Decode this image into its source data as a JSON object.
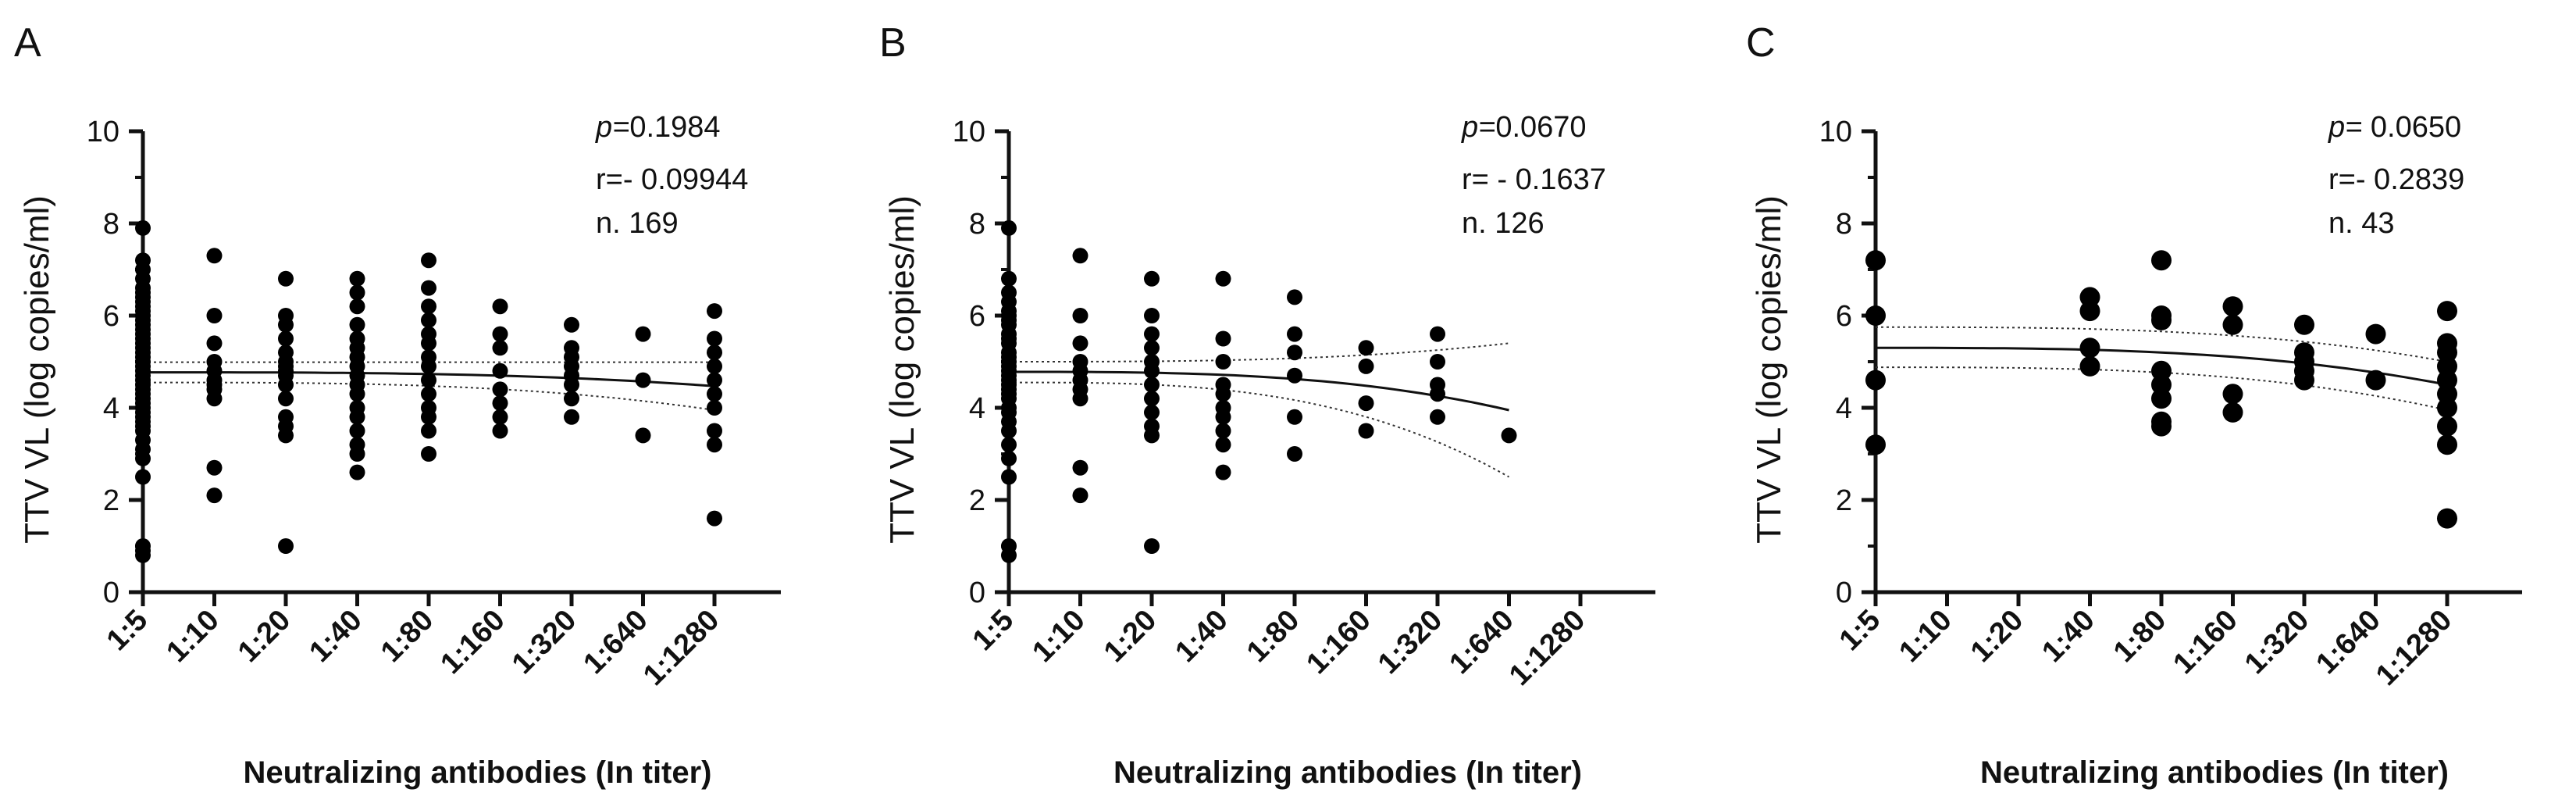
{
  "chart_data": [
    {
      "type": "scatter",
      "panel": "A",
      "ylabel": "TTV VL (log copies/ml)",
      "xlabel": "Neutralizing antibodies (In titer)",
      "categories": [
        "1:5",
        "1:10",
        "1:20",
        "1:40",
        "1:80",
        "1:160",
        "1:320",
        "1:640",
        "1:1280"
      ],
      "yticks": [
        0,
        2,
        4,
        6,
        8,
        10
      ],
      "ylim": [
        0,
        10
      ],
      "stats": {
        "p": "0.1984",
        "r": "- 0.09944",
        "n": "169"
      },
      "stats_labels": {
        "p": "p=",
        "r": "r=",
        "n": "n."
      },
      "points": [
        [
          0,
          0.8
        ],
        [
          0,
          0.9
        ],
        [
          0,
          1.0
        ],
        [
          0,
          2.5
        ],
        [
          0,
          2.9
        ],
        [
          0,
          3.1
        ],
        [
          0,
          3.3
        ],
        [
          0,
          3.5
        ],
        [
          0,
          3.6
        ],
        [
          0,
          3.7
        ],
        [
          0,
          3.8
        ],
        [
          0,
          3.9
        ],
        [
          0,
          4.0
        ],
        [
          0,
          4.1
        ],
        [
          0,
          4.2
        ],
        [
          0,
          4.3
        ],
        [
          0,
          4.4
        ],
        [
          0,
          4.5
        ],
        [
          0,
          4.6
        ],
        [
          0,
          4.7
        ],
        [
          0,
          4.8
        ],
        [
          0,
          4.9
        ],
        [
          0,
          5.0
        ],
        [
          0,
          5.1
        ],
        [
          0,
          5.2
        ],
        [
          0,
          5.3
        ],
        [
          0,
          5.4
        ],
        [
          0,
          5.5
        ],
        [
          0,
          5.6
        ],
        [
          0,
          5.7
        ],
        [
          0,
          5.8
        ],
        [
          0,
          5.9
        ],
        [
          0,
          6.0
        ],
        [
          0,
          6.1
        ],
        [
          0,
          6.2
        ],
        [
          0,
          6.3
        ],
        [
          0,
          6.4
        ],
        [
          0,
          6.5
        ],
        [
          0,
          6.6
        ],
        [
          0,
          6.8
        ],
        [
          0,
          7.0
        ],
        [
          0,
          7.2
        ],
        [
          0,
          7.9
        ],
        [
          1,
          2.1
        ],
        [
          1,
          2.7
        ],
        [
          1,
          4.2
        ],
        [
          1,
          4.4
        ],
        [
          1,
          4.5
        ],
        [
          1,
          4.6
        ],
        [
          1,
          4.8
        ],
        [
          1,
          5.0
        ],
        [
          1,
          5.4
        ],
        [
          1,
          6.0
        ],
        [
          1,
          7.3
        ],
        [
          2,
          1.0
        ],
        [
          2,
          3.4
        ],
        [
          2,
          3.6
        ],
        [
          2,
          3.8
        ],
        [
          2,
          4.2
        ],
        [
          2,
          4.5
        ],
        [
          2,
          4.7
        ],
        [
          2,
          4.8
        ],
        [
          2,
          4.9
        ],
        [
          2,
          5.0
        ],
        [
          2,
          5.2
        ],
        [
          2,
          5.5
        ],
        [
          2,
          5.8
        ],
        [
          2,
          6.0
        ],
        [
          2,
          6.8
        ],
        [
          3,
          2.6
        ],
        [
          3,
          3.0
        ],
        [
          3,
          3.2
        ],
        [
          3,
          3.5
        ],
        [
          3,
          3.8
        ],
        [
          3,
          4.0
        ],
        [
          3,
          4.3
        ],
        [
          3,
          4.5
        ],
        [
          3,
          4.7
        ],
        [
          3,
          4.9
        ],
        [
          3,
          5.1
        ],
        [
          3,
          5.3
        ],
        [
          3,
          5.5
        ],
        [
          3,
          5.8
        ],
        [
          3,
          6.2
        ],
        [
          3,
          6.5
        ],
        [
          3,
          6.8
        ],
        [
          4,
          3.0
        ],
        [
          4,
          3.5
        ],
        [
          4,
          3.8
        ],
        [
          4,
          4.0
        ],
        [
          4,
          4.3
        ],
        [
          4,
          4.6
        ],
        [
          4,
          4.9
        ],
        [
          4,
          5.1
        ],
        [
          4,
          5.4
        ],
        [
          4,
          5.6
        ],
        [
          4,
          5.9
        ],
        [
          4,
          6.2
        ],
        [
          4,
          6.6
        ],
        [
          4,
          7.2
        ],
        [
          5,
          3.5
        ],
        [
          5,
          3.8
        ],
        [
          5,
          4.1
        ],
        [
          5,
          4.4
        ],
        [
          5,
          4.8
        ],
        [
          5,
          5.3
        ],
        [
          5,
          5.6
        ],
        [
          5,
          6.2
        ],
        [
          6,
          3.8
        ],
        [
          6,
          4.2
        ],
        [
          6,
          4.5
        ],
        [
          6,
          4.7
        ],
        [
          6,
          4.9
        ],
        [
          6,
          5.1
        ],
        [
          6,
          5.3
        ],
        [
          6,
          5.8
        ],
        [
          7,
          3.4
        ],
        [
          7,
          4.6
        ],
        [
          7,
          5.6
        ],
        [
          8,
          1.6
        ],
        [
          8,
          3.2
        ],
        [
          8,
          3.5
        ],
        [
          8,
          4.0
        ],
        [
          8,
          4.3
        ],
        [
          8,
          4.6
        ],
        [
          8,
          4.9
        ],
        [
          8,
          5.2
        ],
        [
          8,
          5.5
        ],
        [
          8,
          6.1
        ]
      ],
      "fit": {
        "y0": 4.77,
        "y1": 4.47,
        "band_lo0": 4.55,
        "band_lo1": 3.95,
        "band_hi0": 4.99,
        "band_hi1": 4.99
      }
    },
    {
      "type": "scatter",
      "panel": "B",
      "ylabel": "TTV VL (log copies/ml)",
      "xlabel": "Neutralizing antibodies (In titer)",
      "categories": [
        "1:5",
        "1:10",
        "1:20",
        "1:40",
        "1:80",
        "1:160",
        "1:320",
        "1:640",
        "1:1280"
      ],
      "yticks": [
        0,
        2,
        4,
        6,
        8,
        10
      ],
      "ylim": [
        0,
        10
      ],
      "stats": {
        "p": "0.0670",
        "r": " - 0.1637",
        "n": "126"
      },
      "stats_labels": {
        "p": "p=",
        "r": "r=",
        "n": "n."
      },
      "points": [
        [
          0,
          0.8
        ],
        [
          0,
          1.0
        ],
        [
          0,
          2.5
        ],
        [
          0,
          2.9
        ],
        [
          0,
          3.2
        ],
        [
          0,
          3.5
        ],
        [
          0,
          3.7
        ],
        [
          0,
          3.9
        ],
        [
          0,
          4.0
        ],
        [
          0,
          4.2
        ],
        [
          0,
          4.3
        ],
        [
          0,
          4.4
        ],
        [
          0,
          4.5
        ],
        [
          0,
          4.6
        ],
        [
          0,
          4.7
        ],
        [
          0,
          4.8
        ],
        [
          0,
          4.9
        ],
        [
          0,
          5.0
        ],
        [
          0,
          5.1
        ],
        [
          0,
          5.2
        ],
        [
          0,
          5.4
        ],
        [
          0,
          5.5
        ],
        [
          0,
          5.6
        ],
        [
          0,
          5.8
        ],
        [
          0,
          5.9
        ],
        [
          0,
          6.0
        ],
        [
          0,
          6.1
        ],
        [
          0,
          6.3
        ],
        [
          0,
          6.5
        ],
        [
          0,
          6.8
        ],
        [
          0,
          7.9
        ],
        [
          1,
          2.1
        ],
        [
          1,
          2.7
        ],
        [
          1,
          4.2
        ],
        [
          1,
          4.4
        ],
        [
          1,
          4.6
        ],
        [
          1,
          4.8
        ],
        [
          1,
          5.0
        ],
        [
          1,
          5.4
        ],
        [
          1,
          6.0
        ],
        [
          1,
          7.3
        ],
        [
          2,
          1.0
        ],
        [
          2,
          3.4
        ],
        [
          2,
          3.6
        ],
        [
          2,
          3.9
        ],
        [
          2,
          4.2
        ],
        [
          2,
          4.5
        ],
        [
          2,
          4.8
        ],
        [
          2,
          5.0
        ],
        [
          2,
          5.3
        ],
        [
          2,
          5.6
        ],
        [
          2,
          6.0
        ],
        [
          2,
          6.8
        ],
        [
          3,
          2.6
        ],
        [
          3,
          3.2
        ],
        [
          3,
          3.5
        ],
        [
          3,
          3.8
        ],
        [
          3,
          4.0
        ],
        [
          3,
          4.3
        ],
        [
          3,
          4.5
        ],
        [
          3,
          5.0
        ],
        [
          3,
          5.5
        ],
        [
          3,
          6.8
        ],
        [
          4,
          3.0
        ],
        [
          4,
          3.8
        ],
        [
          4,
          4.7
        ],
        [
          4,
          5.2
        ],
        [
          4,
          5.6
        ],
        [
          4,
          6.4
        ],
        [
          5,
          3.5
        ],
        [
          5,
          4.1
        ],
        [
          5,
          4.9
        ],
        [
          5,
          5.3
        ],
        [
          6,
          3.8
        ],
        [
          6,
          4.3
        ],
        [
          6,
          4.5
        ],
        [
          6,
          5.0
        ],
        [
          6,
          5.6
        ],
        [
          7,
          3.4
        ]
      ],
      "fit": {
        "y0": 4.78,
        "y1": 3.95,
        "band_lo0": 4.55,
        "band_lo1": 2.5,
        "band_hi0": 5.0,
        "band_hi1": 5.4,
        "x_end": 7
      }
    },
    {
      "type": "scatter",
      "panel": "C",
      "ylabel": "TTV VL (log copies/ml)",
      "xlabel": "Neutralizing antibodies (In titer)",
      "categories": [
        "1:5",
        "1:10",
        "1:20",
        "1:40",
        "1:80",
        "1:160",
        "1:320",
        "1:640",
        "1:1280"
      ],
      "yticks": [
        0,
        2,
        4,
        6,
        8,
        10
      ],
      "ylim": [
        0,
        10
      ],
      "stats": {
        "p": " 0.0650",
        "r": "- 0.2839",
        "n": " 43"
      },
      "stats_labels": {
        "p": "p=",
        "r": "r=",
        "n": "n."
      },
      "points": [
        [
          0,
          3.2
        ],
        [
          0,
          4.6
        ],
        [
          0,
          6.0
        ],
        [
          0,
          7.2
        ],
        [
          3,
          4.9
        ],
        [
          3,
          5.3
        ],
        [
          3,
          6.1
        ],
        [
          3,
          6.4
        ],
        [
          4,
          3.6
        ],
        [
          4,
          3.7
        ],
        [
          4,
          4.2
        ],
        [
          4,
          4.5
        ],
        [
          4,
          4.8
        ],
        [
          4,
          5.9
        ],
        [
          4,
          6.0
        ],
        [
          4,
          7.2
        ],
        [
          5,
          3.9
        ],
        [
          5,
          4.3
        ],
        [
          5,
          5.8
        ],
        [
          5,
          6.2
        ],
        [
          6,
          4.6
        ],
        [
          6,
          4.8
        ],
        [
          6,
          5.0
        ],
        [
          6,
          5.2
        ],
        [
          6,
          5.8
        ],
        [
          7,
          4.6
        ],
        [
          7,
          5.6
        ],
        [
          8,
          1.6
        ],
        [
          8,
          3.2
        ],
        [
          8,
          3.6
        ],
        [
          8,
          4.0
        ],
        [
          8,
          4.3
        ],
        [
          8,
          4.6
        ],
        [
          8,
          4.9
        ],
        [
          8,
          5.2
        ],
        [
          8,
          5.4
        ],
        [
          8,
          6.1
        ]
      ],
      "fit": {
        "y0": 5.3,
        "y1": 4.5,
        "band_lo0": 4.88,
        "band_lo1": 3.95,
        "band_hi0": 5.75,
        "band_hi1": 5.0
      }
    }
  ]
}
